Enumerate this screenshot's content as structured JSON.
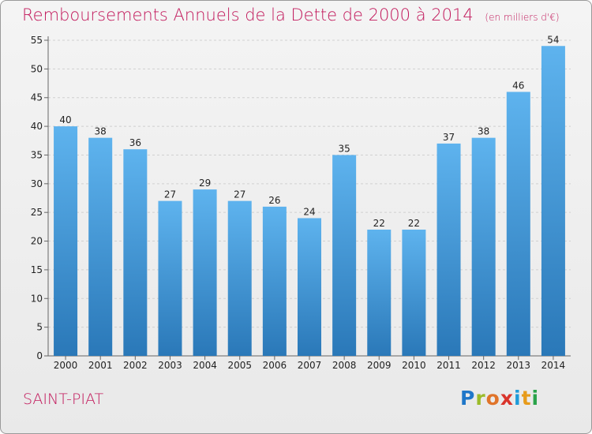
{
  "title": "Remboursements Annuels de la Dette de 2000 à 2014",
  "subtitle": "(en milliers d'€)",
  "town": "SAINT-PIAT",
  "brand": {
    "letters": [
      "P",
      "r",
      "o",
      "x",
      "i",
      "t",
      "i"
    ],
    "colors": [
      "#1f77c9",
      "#9bbb2a",
      "#e0742a",
      "#d9342b",
      "#1f9bd9",
      "#e79b1a",
      "#2aa34a"
    ]
  },
  "colors": {
    "bar_light": "#5eb3ee",
    "bar_dark": "#2a78b8",
    "title": "#c2185b"
  },
  "chart_data": {
    "type": "bar",
    "categories": [
      "2000",
      "2001",
      "2002",
      "2003",
      "2004",
      "2005",
      "2006",
      "2007",
      "2008",
      "2009",
      "2010",
      "2011",
      "2012",
      "2013",
      "2014"
    ],
    "values": [
      40,
      38,
      36,
      27,
      29,
      27,
      26,
      24,
      35,
      22,
      22,
      37,
      38,
      46,
      54
    ],
    "ylim": [
      0,
      55
    ],
    "yticks": [
      0,
      5,
      10,
      15,
      20,
      25,
      30,
      35,
      40,
      45,
      50,
      55
    ],
    "grid": true
  }
}
